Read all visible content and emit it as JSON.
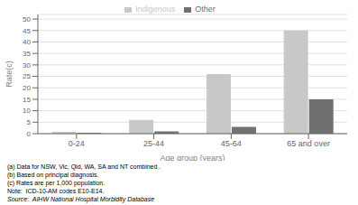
{
  "chart_data": {
    "type": "bar",
    "categories": [
      "0-24",
      "25-44",
      "45-64",
      "65 and over"
    ],
    "series": [
      {
        "name": "Indigenous",
        "color": "#c8c8c8",
        "values": [
          0.8,
          6.0,
          26.0,
          45.0
        ]
      },
      {
        "name": "Other",
        "color": "#707070",
        "values": [
          0.4,
          1.0,
          3.0,
          15.0
        ]
      }
    ],
    "xlabel": "Age group (years)",
    "ylabel": "Rate(c)",
    "ylim": [
      0,
      52
    ],
    "yticks": [
      0,
      5,
      10,
      15,
      20,
      25,
      30,
      35,
      40,
      45,
      50
    ],
    "grid": true,
    "legend": "top",
    "annotations": [
      "(a) Data for NSW, Vic, Qld, WA, SA and NT combined .",
      "(b) Based on principal diagnosis.",
      "(c) Rates are per 1,000 population.",
      "Note:  ICD-10-AM codes E10-E14.",
      "Source:  AIHW National Hospital Morbidity Database"
    ]
  }
}
